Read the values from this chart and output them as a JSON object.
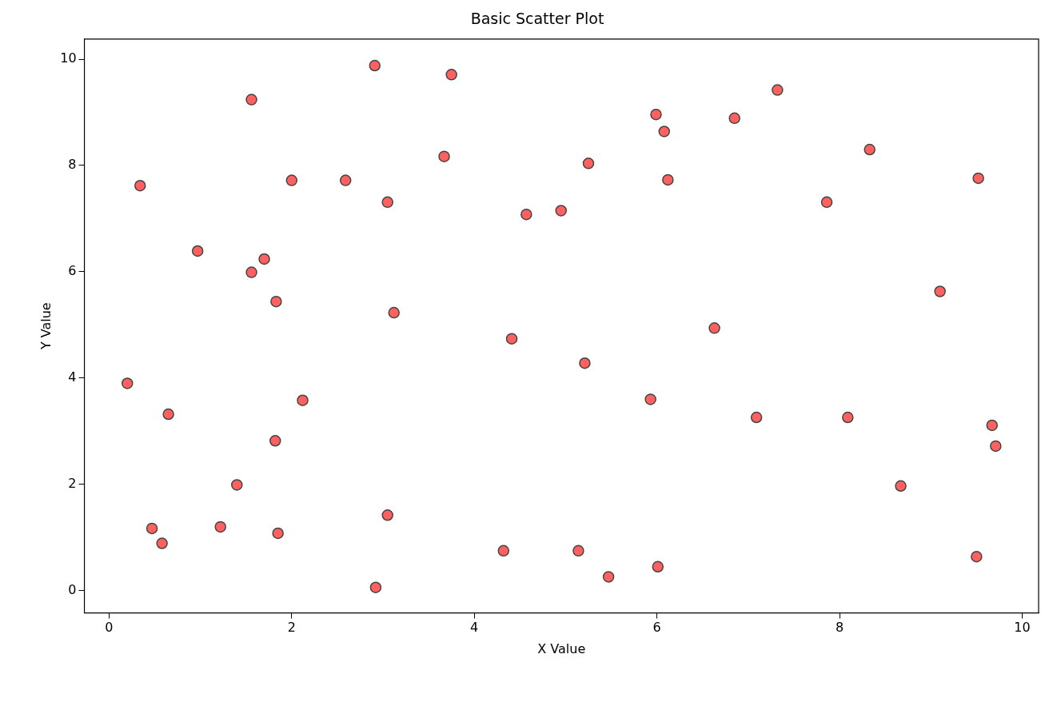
{
  "chart_data": {
    "type": "scatter",
    "title": "Basic Scatter Plot",
    "xlabel": "X Value",
    "ylabel": "Y Value",
    "xlim": [
      -0.27,
      10.18
    ],
    "ylim": [
      -0.42,
      10.38
    ],
    "xticks": [
      0,
      2,
      4,
      6,
      8,
      10
    ],
    "yticks": [
      0,
      2,
      4,
      6,
      8,
      10
    ],
    "grid": false,
    "legend": false,
    "marker": "circle",
    "series": [
      {
        "color": "#ff6161",
        "x": [
          0.2,
          0.34,
          0.47,
          0.58,
          0.65,
          0.97,
          1.22,
          1.4,
          1.56,
          1.56,
          1.7,
          1.82,
          1.83,
          1.85,
          2.0,
          2.12,
          2.59,
          2.91,
          2.92,
          3.05,
          3.05,
          3.12,
          3.67,
          3.75,
          4.32,
          4.41,
          4.57,
          4.95,
          5.14,
          5.21,
          5.25,
          5.47,
          5.93,
          5.99,
          6.01,
          6.08,
          6.12,
          6.63,
          6.85,
          7.09,
          7.32,
          7.86,
          8.09,
          8.33,
          8.67,
          9.1,
          9.5,
          9.52,
          9.67,
          9.71
        ],
        "values": [
          3.9,
          7.62,
          1.17,
          0.89,
          3.32,
          6.39,
          1.2,
          1.99,
          9.24,
          5.99,
          6.24,
          2.82,
          5.44,
          1.08,
          7.72,
          3.58,
          7.72,
          9.88,
          0.06,
          7.31,
          1.42,
          5.23,
          8.17,
          9.71,
          0.75,
          4.74,
          7.08,
          7.15,
          0.75,
          4.28,
          8.04,
          0.26,
          3.6,
          8.96,
          0.45,
          8.64,
          7.73,
          4.94,
          8.89,
          3.26,
          9.42,
          7.31,
          3.26,
          8.3,
          1.97,
          5.63,
          0.64,
          7.76,
          3.11,
          2.72
        ]
      }
    ]
  }
}
